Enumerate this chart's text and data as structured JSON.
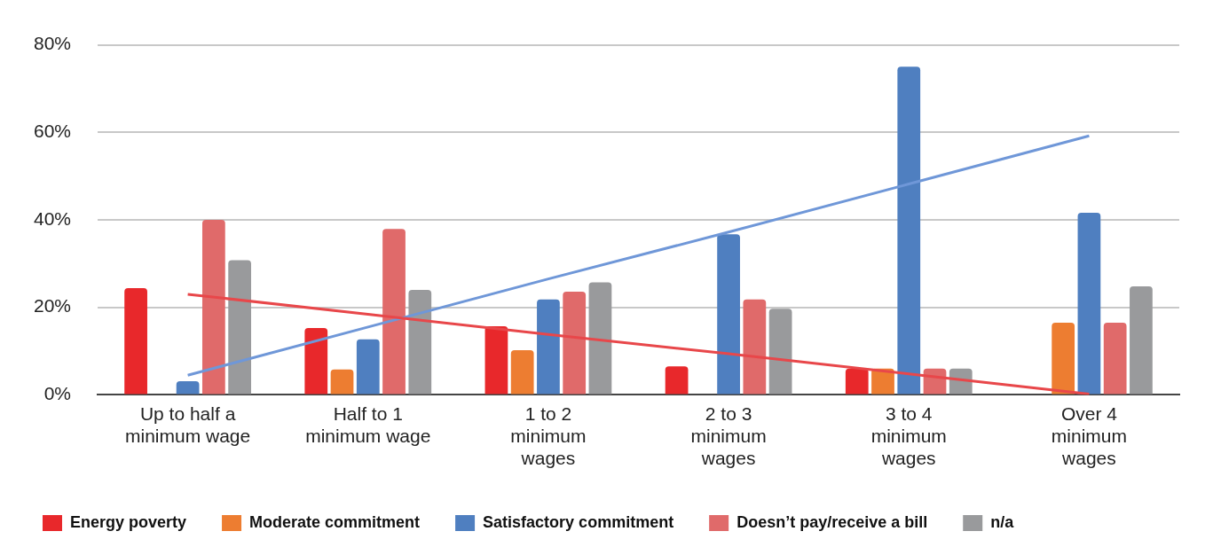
{
  "chart_data": {
    "type": "bar",
    "categories": [
      "Up to half a\nminimum wage",
      "Half to 1\nminimum wage",
      "1 to 2\nminimum\nwages",
      "2 to 3\nminimum\nwages",
      "3 to 4\nminimum\nwages",
      "Over 4\nminimum\nwages"
    ],
    "series": [
      {
        "name": "Energy poverty",
        "color": "#e8282b",
        "values": [
          24.4,
          15.3,
          15.7,
          6.5,
          6,
          0
        ]
      },
      {
        "name": "Moderate commitment",
        "color": "#ed7d31",
        "values": [
          0,
          5.8,
          10.2,
          0,
          6,
          16.5
        ]
      },
      {
        "name": "Satisfactory commitment",
        "color": "#4f7fc0",
        "values": [
          3.1,
          12.7,
          21.8,
          36.7,
          75,
          41.6
        ]
      },
      {
        "name": "Doesn’t pay/receive a bill",
        "color": "#e06a6a",
        "values": [
          40,
          37.9,
          23.6,
          21.8,
          6,
          16.5
        ]
      },
      {
        "name": "n/a",
        "color": "#999a9c",
        "values": [
          30.8,
          24,
          25.7,
          19.7,
          6,
          24.8
        ]
      },
      {
        "type": "line",
        "color": "#e8474a",
        "values": [
          23,
          18.4,
          13.8,
          9.4,
          4.8,
          0.2
        ]
      },
      {
        "type": "line",
        "color": "#6f97d8",
        "values": [
          4.5,
          15.5,
          26.5,
          37.2,
          48.2,
          59.2
        ]
      }
    ],
    "ylim": [
      0,
      80
    ],
    "yticks": [
      {
        "value": 0,
        "label": "0%"
      },
      {
        "value": 20,
        "label": "20%"
      },
      {
        "value": 40,
        "label": "40%"
      },
      {
        "value": 60,
        "label": "60%"
      },
      {
        "value": 80,
        "label": "80%"
      }
    ],
    "grid": "y",
    "legend": "bottom",
    "marker": "none"
  }
}
